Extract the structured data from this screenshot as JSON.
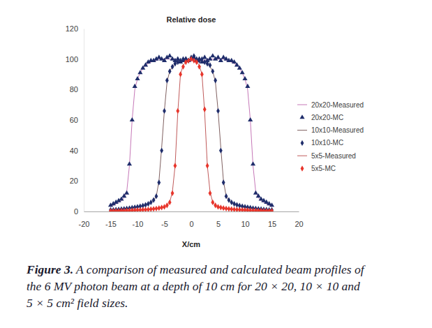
{
  "chart_data": {
    "type": "line",
    "title": "Relative dose",
    "x_label": "X/cm",
    "caption_label": "Figure 3.",
    "caption": [
      "A comparison of measured and calculated beam profiles of",
      "the 6 MV photon beam at a depth of 10 cm for 20 × 20, 10 × 10 and",
      "5 × 5 cm² field sizes."
    ],
    "xlim": [
      -20,
      20
    ],
    "xticks": [
      -20,
      -15,
      -10,
      -5,
      0,
      5,
      10,
      15,
      20
    ],
    "ylim": [
      0,
      120
    ],
    "yticks": [
      0,
      20,
      40,
      60,
      80,
      100,
      120
    ],
    "grid": false,
    "legend": "right",
    "x": [
      -15,
      -14.5,
      -14,
      -13.5,
      -13,
      -12.5,
      -12,
      -11.5,
      -11,
      -10.5,
      -10,
      -9.5,
      -9,
      -8.5,
      -8,
      -7.5,
      -7,
      -6.5,
      -6,
      -5.5,
      -5,
      -4.5,
      -4,
      -3.5,
      -3,
      -2.5,
      -2,
      -1.5,
      -1,
      -0.5,
      0,
      0.5,
      1,
      1.5,
      2,
      2.5,
      3,
      3.5,
      4,
      4.5,
      5,
      5.5,
      6,
      6.5,
      7,
      7.5,
      8,
      8.5,
      9,
      9.5,
      10,
      10.5,
      11,
      11.5,
      12,
      12.5,
      13,
      13.5,
      14,
      14.5,
      15
    ],
    "series": [
      {
        "name": "20x20-Measured",
        "type": "line",
        "line_style": "solid",
        "color": "#c678b8",
        "values": [
          3,
          4,
          5,
          6,
          7,
          9,
          13,
          30,
          60,
          80,
          87,
          91,
          94,
          96,
          97,
          98,
          99,
          99,
          100,
          100,
          100,
          100,
          100,
          100,
          100,
          99,
          99,
          99,
          99,
          99,
          99,
          99,
          99,
          99,
          99,
          99,
          100,
          100,
          100,
          100,
          100,
          100,
          100,
          99,
          99,
          98,
          97,
          96,
          94,
          91,
          87,
          80,
          60,
          30,
          13,
          9,
          7,
          6,
          5,
          4,
          3
        ]
      },
      {
        "name": "20x20-MC",
        "type": "scatter",
        "marker": "triangle",
        "color": "#1f2d6b",
        "values": [
          4,
          5,
          6,
          7,
          8,
          10,
          12,
          31,
          60,
          82,
          87,
          91,
          94,
          96,
          98,
          99,
          99,
          100,
          101,
          100,
          99,
          101,
          102,
          100,
          99,
          100,
          98,
          99,
          100,
          99,
          100,
          101,
          99,
          100,
          98,
          101,
          99,
          100,
          102,
          100,
          101,
          99,
          101,
          100,
          99,
          99,
          98,
          96,
          94,
          91,
          87,
          82,
          60,
          31,
          12,
          10,
          8,
          7,
          6,
          5,
          4
        ]
      },
      {
        "name": "10x10-Measured",
        "type": "line",
        "line_style": "solid",
        "color": "#7f6060",
        "values": [
          1,
          1.1,
          1.2,
          1.3,
          1.5,
          1.7,
          1.9,
          2.1,
          2.3,
          2.6,
          3,
          3.3,
          3.7,
          4.2,
          4.9,
          5.8,
          7.3,
          10,
          20,
          42,
          66,
          85,
          92,
          95,
          97,
          98,
          99,
          99,
          100,
          100,
          100,
          100,
          100,
          99,
          99,
          98,
          97,
          95,
          92,
          85,
          66,
          42,
          20,
          10,
          7.3,
          5.8,
          4.9,
          4.2,
          3.7,
          3.3,
          3,
          2.6,
          2.3,
          2.1,
          1.9,
          1.7,
          1.5,
          1.3,
          1.2,
          1.1,
          1
        ]
      },
      {
        "name": "10x10-MC",
        "type": "scatter",
        "marker": "diamond",
        "color": "#1f2d6b",
        "values": [
          1,
          1,
          1.2,
          1.3,
          1.5,
          1.7,
          1.9,
          2.1,
          2.4,
          2.7,
          3,
          3.4,
          3.8,
          4.3,
          5,
          6,
          7.5,
          10,
          19,
          40,
          66,
          86,
          92,
          95,
          97,
          98,
          99,
          100,
          100,
          99,
          101,
          102,
          100,
          99,
          100,
          98,
          97,
          96,
          92,
          86,
          66,
          40,
          19,
          10,
          7.5,
          6,
          5,
          4.3,
          3.8,
          3.4,
          3,
          2.7,
          2.4,
          2.1,
          1.9,
          1.7,
          1.5,
          1.3,
          1.2,
          1,
          1
        ]
      },
      {
        "name": "5x5-Measured",
        "type": "line",
        "line_style": "solid",
        "color": "#c05a5a",
        "values": [
          0.3,
          0.3,
          0.3,
          0.4,
          0.4,
          0.5,
          0.5,
          0.6,
          0.7,
          0.7,
          0.8,
          0.9,
          1,
          1.1,
          1.3,
          1.4,
          1.6,
          1.9,
          2.2,
          2.6,
          3.1,
          4,
          6,
          13,
          30,
          65,
          90,
          96,
          98,
          99,
          100,
          99,
          98,
          96,
          90,
          65,
          30,
          13,
          6,
          4,
          3.1,
          2.6,
          2.2,
          1.9,
          1.6,
          1.4,
          1.3,
          1.1,
          1,
          0.9,
          0.8,
          0.7,
          0.7,
          0.6,
          0.5,
          0.5,
          0.4,
          0.4,
          0.3,
          0.3,
          0.3
        ]
      },
      {
        "name": "5x5-MC",
        "type": "scatter",
        "marker": "diamond",
        "color": "#e8352b",
        "values": [
          0.3,
          0.3,
          0.4,
          0.4,
          0.5,
          0.5,
          0.6,
          0.6,
          0.7,
          0.8,
          0.9,
          1,
          1.1,
          1.2,
          1.3,
          1.5,
          1.7,
          1.9,
          2.2,
          2.6,
          3,
          4,
          6,
          12,
          30,
          66,
          90,
          95,
          98,
          99,
          100,
          99,
          98,
          95,
          90,
          67,
          30,
          12,
          6,
          4,
          3,
          2.6,
          2.2,
          1.9,
          1.7,
          1.5,
          1.3,
          1.2,
          1.1,
          1,
          0.9,
          0.8,
          0.7,
          0.6,
          0.6,
          0.5,
          0.5,
          0.4,
          0.4,
          0.3,
          0.3
        ]
      }
    ]
  }
}
